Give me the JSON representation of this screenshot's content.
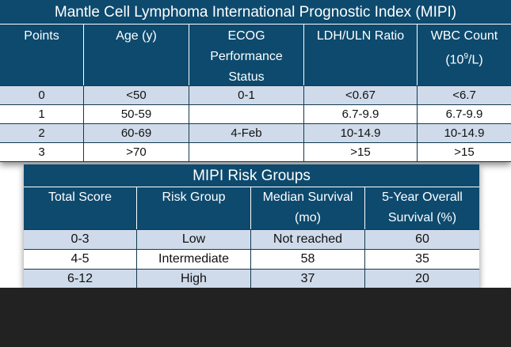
{
  "mipi": {
    "title": "Mantle Cell Lymphoma International Prognostic Index (MIPI)",
    "headers": {
      "points": "Points",
      "age": "Age (y)",
      "ecog_line1": "ECOG",
      "ecog_line2": "Performance",
      "ecog_line3": "Status",
      "ldh": "LDH/ULN Ratio",
      "wbc_line1": "WBC Count",
      "wbc_unit_pre": "(10",
      "wbc_unit_sup": "9",
      "wbc_unit_post": "/L)"
    },
    "rows": [
      {
        "points": "0",
        "age": "<50",
        "ecog": "0-1",
        "ldh": "<0.67",
        "wbc": "<6.7"
      },
      {
        "points": "1",
        "age": "50-59",
        "ecog": "",
        "ldh": "6.7-9.9",
        "wbc": "6.7-9.9"
      },
      {
        "points": "2",
        "age": "60-69",
        "ecog": "4-Feb",
        "ldh": "10-14.9",
        "wbc": "10-14.9"
      },
      {
        "points": "3",
        "age": ">70",
        "ecog": "",
        "ldh": ">15",
        "wbc": ">15"
      }
    ]
  },
  "risk": {
    "title": "MIPI Risk Groups",
    "headers": {
      "total_score": "Total Score",
      "risk_group": "Risk Group",
      "median_line1": "Median Survival",
      "median_line2": "(mo)",
      "overall_line1": "5-Year Overall",
      "overall_line2": "Survival (%)"
    },
    "rows": [
      {
        "score": "0-3",
        "group": "Low",
        "median": "Not reached",
        "overall": "60"
      },
      {
        "score": "4-5",
        "group": "Intermediate",
        "median": "58",
        "overall": "35"
      },
      {
        "score": "6-12",
        "group": "High",
        "median": "37",
        "overall": "20"
      }
    ]
  },
  "colors": {
    "header_bg": "#0d4a6e",
    "alt_row_bg": "#cfdbea",
    "footer_bg": "#222222"
  }
}
